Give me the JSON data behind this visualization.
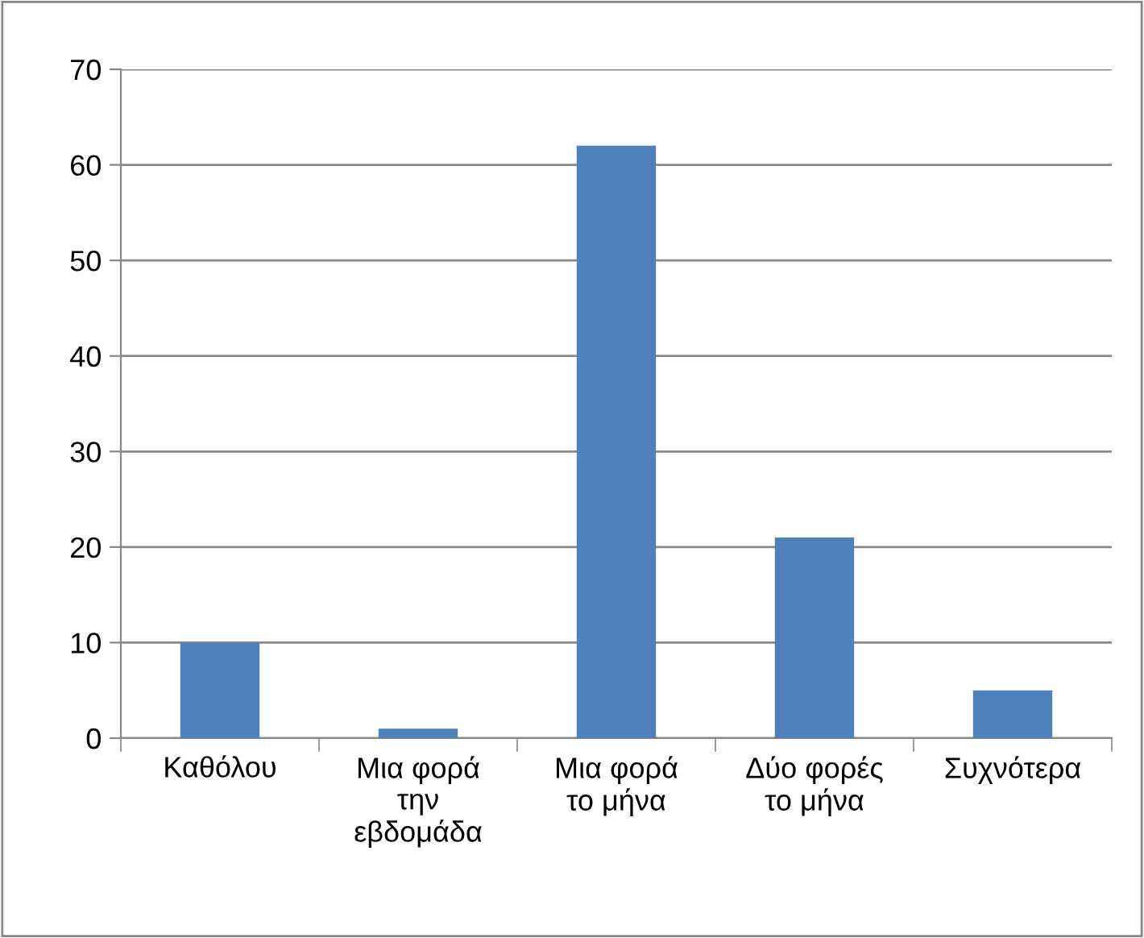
{
  "chart_data": {
    "type": "bar",
    "categories": [
      "Καθόλου",
      "Μια φορά\nτην\nεβδομάδα",
      "Μια φορά\nτο μήνα",
      "Δύο φορές\nτο μήνα",
      "Συχνότερα"
    ],
    "values": [
      10,
      1,
      62,
      21,
      5
    ],
    "color": "#4f81bd",
    "ylim": [
      0,
      70
    ],
    "yticks": [
      0,
      10,
      20,
      30,
      40,
      50,
      60,
      70
    ],
    "grid": "y",
    "legend": false
  }
}
